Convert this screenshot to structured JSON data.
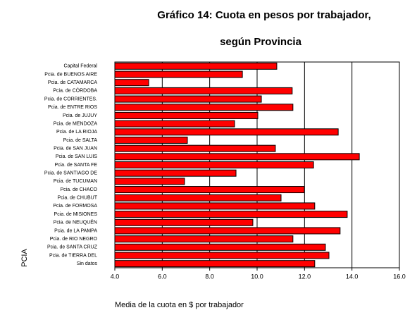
{
  "chart_data": {
    "type": "barh",
    "title": "Gráfico 14: Cuota en pesos por trabajador,",
    "subtitle": "según Provincia",
    "x_label": "Media de la cuota en $ por trabajador",
    "y_label": "PCIA",
    "categories": [
      "Capital Federal",
      "Pcia. de BUENOS AIRE",
      "Pcia. de CATAMARCA",
      "Pcia. de CÓRDOBA",
      "Pcia. de CORRIENTES.",
      "Pcia. de ENTRE RIOS",
      "Pcia. de JUJUY",
      "Pcia. de MENDOZA",
      "Pcia. de LA RIOJA",
      "Pcia. de SALTA",
      "Pcia. de SAN JUAN",
      "Pcia. de SAN LUIS",
      "Pcia. de SANTA FE",
      "Pcia. de SANTIAGO DE",
      "Pcia. de TUCUMAN",
      "Pcia. de CHACO",
      "Pcia. de CHUBUT",
      "Pcia. de FORMOSA",
      "Pcia. de MISIONES",
      "Pcia. de NEUQUÉN",
      "Pcia. de LA PAMPA",
      "Pcia. de RIO NEGRO",
      "Pcia. de SANTA CRUZ",
      "Pcia. de TIERRA DEL",
      "Sin datos"
    ],
    "values": [
      10.83,
      9.38,
      5.43,
      11.48,
      10.18,
      11.51,
      10.03,
      9.05,
      13.42,
      7.06,
      10.77,
      14.31,
      12.38,
      9.11,
      6.94,
      11.99,
      11.01,
      12.43,
      13.8,
      9.82,
      13.5,
      11.51,
      12.88,
      13.03,
      12.43
    ],
    "color": "#ff0000",
    "xlim": [
      4,
      16
    ],
    "xticks": [
      {
        "value": 4,
        "label": "4.0"
      },
      {
        "value": 6,
        "label": "6.0"
      },
      {
        "value": 8,
        "label": "8.0"
      },
      {
        "value": 10,
        "label": "10.0"
      },
      {
        "value": 12,
        "label": "12.0"
      },
      {
        "value": 14,
        "label": "14.0"
      },
      {
        "value": 16,
        "label": "16.0"
      }
    ],
    "grid": true
  }
}
